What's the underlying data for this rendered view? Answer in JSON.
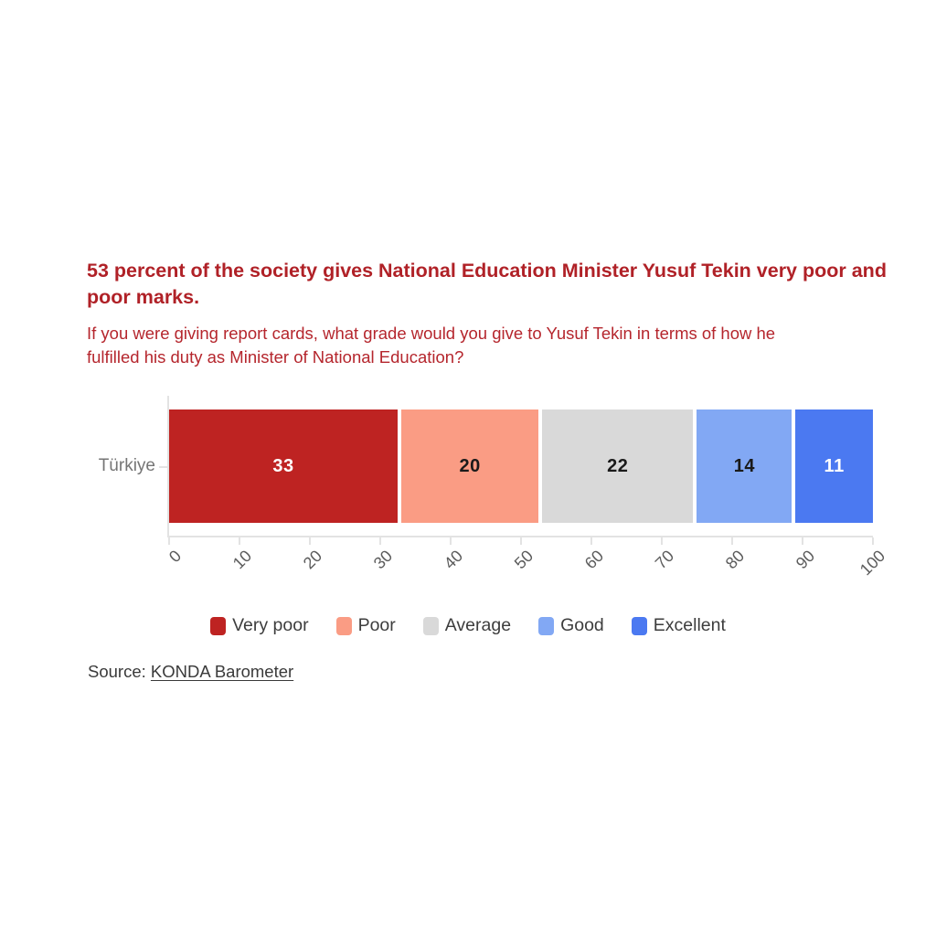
{
  "header": {
    "title": "53 percent of the society gives National Education Minister Yusuf Tekin very poor and poor marks.",
    "subtitle": "If you were giving report cards, what grade would you give to Yusuf Tekin in terms of how he fulfilled his duty as Minister of National Education?",
    "title_color": "#b02127",
    "subtitle_color": "#b5262d"
  },
  "chart_data": {
    "type": "bar",
    "orientation": "horizontal_stacked",
    "title": "53 percent of the society gives National Education Minister Yusuf Tekin very poor and poor marks.",
    "subtitle": "If you were giving report cards, what grade would you give to Yusuf Tekin in terms of how he fulfilled his duty as Minister of National Education?",
    "categories": [
      "Türkiye"
    ],
    "series": [
      {
        "name": "Very poor",
        "values": [
          33
        ],
        "color": "#be2322",
        "label_color": "#ffffff"
      },
      {
        "name": "Poor",
        "values": [
          20
        ],
        "color": "#fa9c84",
        "label_color": "#1a1a1a"
      },
      {
        "name": "Average",
        "values": [
          22
        ],
        "color": "#d9d9d9",
        "label_color": "#1a1a1a"
      },
      {
        "name": "Good",
        "values": [
          14
        ],
        "color": "#82a8f4",
        "label_color": "#1a1a1a"
      },
      {
        "name": "Excellent",
        "values": [
          11
        ],
        "color": "#4b79f1",
        "label_color": "#ffffff"
      }
    ],
    "xlim": [
      0,
      100
    ],
    "x_ticks": [
      0,
      10,
      20,
      30,
      40,
      50,
      60,
      70,
      80,
      90,
      100
    ],
    "grid": false,
    "legend_position": "bottom",
    "axis_color": "#e3e3e3",
    "segment_gap_color": "#ffffff"
  },
  "source": {
    "prefix": "Source: ",
    "link_text": "KONDA Barometer"
  }
}
